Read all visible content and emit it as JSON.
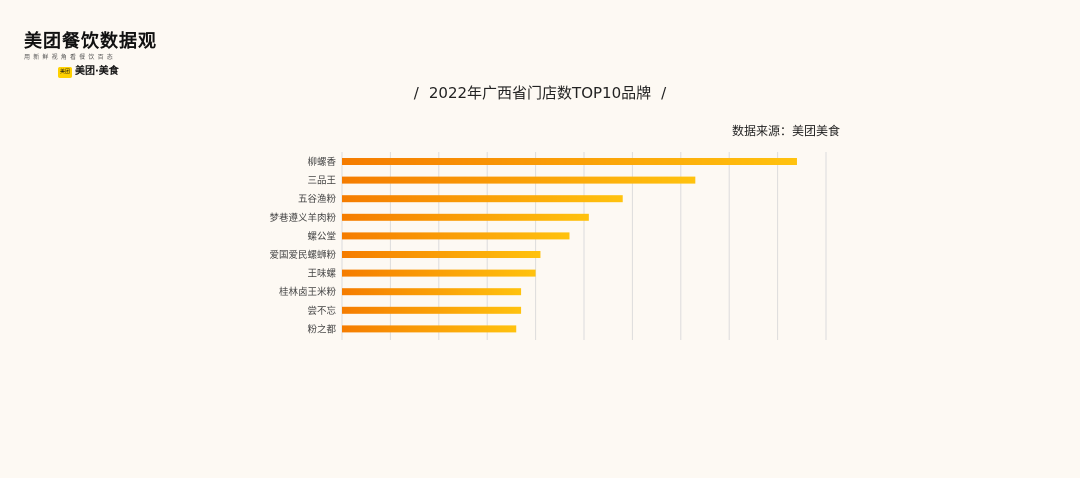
{
  "logo": {
    "title": "美团餐饮数据观",
    "slogan": "用新鲜视角看餐饮百态",
    "brand_badge": "美团",
    "brand_name": "美团·美食"
  },
  "chart_data": {
    "type": "bar",
    "orientation": "horizontal",
    "title": "2022年广西省门店数TOP10品牌",
    "title_slash": "/",
    "source": "数据来源：美团美食",
    "categories": [
      "柳螺香",
      "三品王",
      "五谷渔粉",
      "梦巷遵义羊肉粉",
      "螺公堂",
      "爱国爱民螺蛳粉",
      "王味螺",
      "桂林卤王米粉",
      "尝不忘",
      "粉之都"
    ],
    "values": [
      94,
      73,
      58,
      51,
      47,
      41,
      40,
      37,
      37,
      36
    ],
    "xlim": [
      0,
      100
    ],
    "grid": true,
    "colors": {
      "bar_start": "#f57c00",
      "bar_end": "#ffc20e",
      "grid": "#dcdcdc",
      "label": "#444444"
    }
  }
}
